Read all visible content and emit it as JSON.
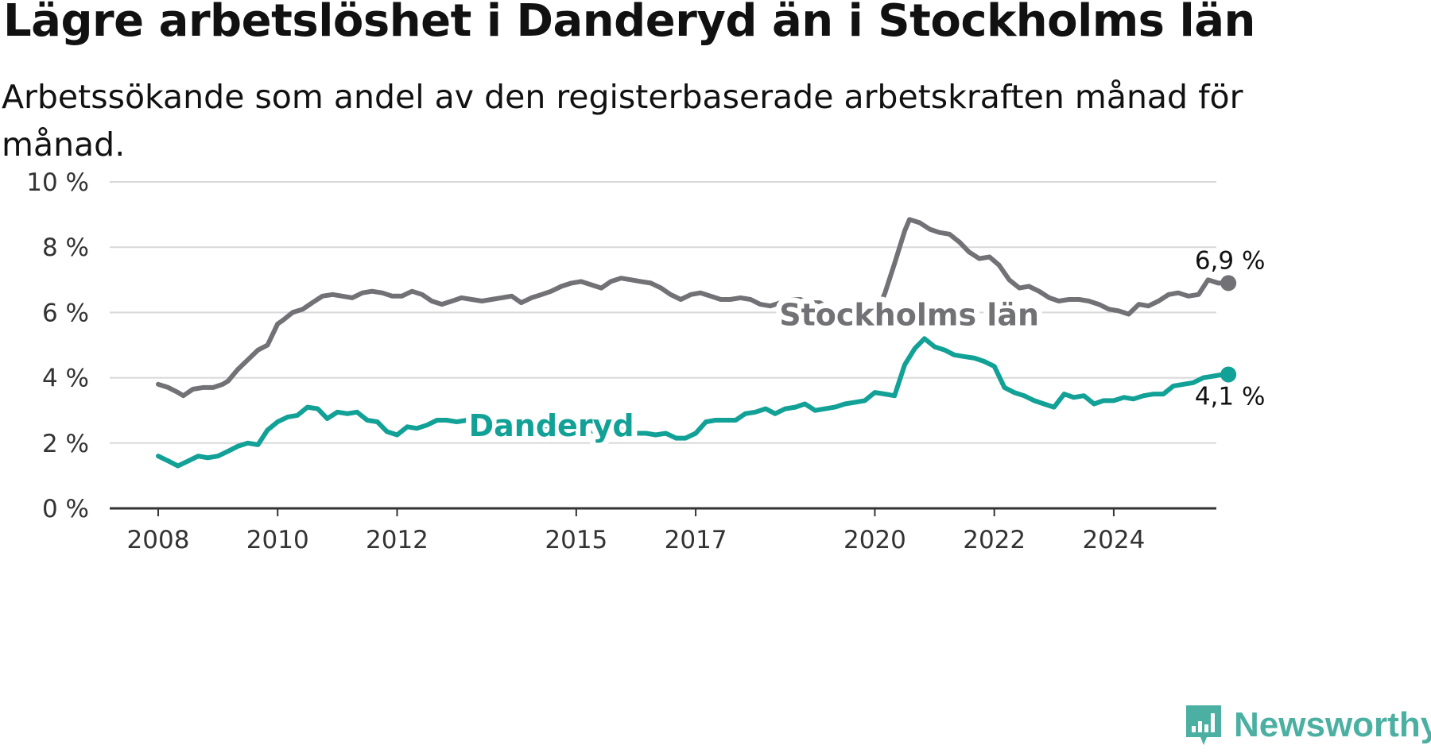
{
  "title": "Lägre arbetslöshet i Danderyd än i Stockholms län",
  "subtitle": "Arbetssökande som andel av den registerbaserade arbetskraften månad för månad.",
  "brand": {
    "name": "Newsworthy",
    "icon": "newsworthy-logo-icon"
  },
  "colors": {
    "stockholm": "#727175",
    "danderyd": "#12a196",
    "grid": "#d8d8d8",
    "axis": "#333333"
  },
  "chart_data": {
    "type": "line",
    "title": "Lägre arbetslöshet i Danderyd än i Stockholms län",
    "subtitle": "Arbetssökande som andel av den registerbaserade arbetskraften månad för månad.",
    "xlabel": "",
    "ylabel": "",
    "ylim": [
      0,
      10
    ],
    "xlim": [
      2008,
      2025.8
    ],
    "grid": true,
    "legend": "inline labels",
    "y_ticks": [
      {
        "value": 0,
        "label": "0 %"
      },
      {
        "value": 2,
        "label": "2 %"
      },
      {
        "value": 4,
        "label": "4 %"
      },
      {
        "value": 6,
        "label": "6 %"
      },
      {
        "value": 8,
        "label": "8 %"
      },
      {
        "value": 10,
        "label": "10 %"
      }
    ],
    "x_ticks": [
      {
        "value": 2008,
        "label": "2008"
      },
      {
        "value": 2010,
        "label": "2010"
      },
      {
        "value": 2012,
        "label": "2012"
      },
      {
        "value": 2015,
        "label": "2015"
      },
      {
        "value": 2017,
        "label": "2017"
      },
      {
        "value": 2020,
        "label": "2020"
      },
      {
        "value": 2022,
        "label": "2022"
      },
      {
        "value": 2024,
        "label": "2024"
      }
    ],
    "series": [
      {
        "name": "Stockholms län",
        "key": "stockholm",
        "end_label": "6,9 %",
        "points": [
          [
            2008.0,
            3.8
          ],
          [
            2008.17,
            3.7
          ],
          [
            2008.33,
            3.55
          ],
          [
            2008.42,
            3.45
          ],
          [
            2008.58,
            3.65
          ],
          [
            2008.75,
            3.7
          ],
          [
            2008.92,
            3.7
          ],
          [
            2009.08,
            3.8
          ],
          [
            2009.17,
            3.9
          ],
          [
            2009.33,
            4.25
          ],
          [
            2009.5,
            4.55
          ],
          [
            2009.67,
            4.85
          ],
          [
            2009.83,
            5.0
          ],
          [
            2010.0,
            5.65
          ],
          [
            2010.08,
            5.75
          ],
          [
            2010.25,
            6.0
          ],
          [
            2010.42,
            6.1
          ],
          [
            2010.58,
            6.3
          ],
          [
            2010.75,
            6.5
          ],
          [
            2010.92,
            6.55
          ],
          [
            2011.08,
            6.5
          ],
          [
            2011.25,
            6.45
          ],
          [
            2011.42,
            6.6
          ],
          [
            2011.58,
            6.65
          ],
          [
            2011.75,
            6.6
          ],
          [
            2011.92,
            6.5
          ],
          [
            2012.08,
            6.5
          ],
          [
            2012.25,
            6.65
          ],
          [
            2012.42,
            6.55
          ],
          [
            2012.58,
            6.35
          ],
          [
            2012.75,
            6.25
          ],
          [
            2012.92,
            6.35
          ],
          [
            2013.08,
            6.45
          ],
          [
            2013.25,
            6.4
          ],
          [
            2013.42,
            6.35
          ],
          [
            2013.58,
            6.4
          ],
          [
            2013.75,
            6.45
          ],
          [
            2013.92,
            6.5
          ],
          [
            2014.08,
            6.3
          ],
          [
            2014.25,
            6.45
          ],
          [
            2014.42,
            6.55
          ],
          [
            2014.58,
            6.65
          ],
          [
            2014.75,
            6.8
          ],
          [
            2014.92,
            6.9
          ],
          [
            2015.08,
            6.95
          ],
          [
            2015.25,
            6.85
          ],
          [
            2015.42,
            6.75
          ],
          [
            2015.58,
            6.95
          ],
          [
            2015.75,
            7.05
          ],
          [
            2015.92,
            7.0
          ],
          [
            2016.08,
            6.95
          ],
          [
            2016.25,
            6.9
          ],
          [
            2016.42,
            6.75
          ],
          [
            2016.58,
            6.55
          ],
          [
            2016.75,
            6.4
          ],
          [
            2016.92,
            6.55
          ],
          [
            2017.08,
            6.6
          ],
          [
            2017.25,
            6.5
          ],
          [
            2017.42,
            6.4
          ],
          [
            2017.58,
            6.4
          ],
          [
            2017.75,
            6.45
          ],
          [
            2017.92,
            6.4
          ],
          [
            2018.08,
            6.25
          ],
          [
            2018.25,
            6.2
          ],
          [
            2018.42,
            6.3
          ],
          [
            2018.58,
            6.4
          ],
          [
            2018.75,
            6.4
          ],
          [
            2018.92,
            6.3
          ],
          [
            2019.08,
            6.3
          ],
          [
            2019.25,
            6.1
          ],
          [
            2019.42,
            6.0
          ],
          [
            2019.58,
            6.05
          ],
          [
            2019.75,
            6.1
          ],
          [
            2019.92,
            6.1
          ],
          [
            2020.0,
            6.05
          ],
          [
            2020.08,
            6.1
          ],
          [
            2020.25,
            6.0
          ],
          [
            2020.42,
            6.05
          ],
          [
            2020.58,
            6.0
          ]
        ],
        "points_2": [
          [
            2020.0,
            6.2
          ],
          [
            2020.08,
            6.2
          ],
          [
            2020.17,
            6.6
          ],
          [
            2020.33,
            7.5
          ],
          [
            2020.5,
            8.5
          ],
          [
            2020.58,
            8.85
          ],
          [
            2020.75,
            8.75
          ],
          [
            2020.92,
            8.55
          ],
          [
            2021.08,
            8.45
          ],
          [
            2021.25,
            8.4
          ],
          [
            2021.42,
            8.15
          ],
          [
            2021.58,
            7.85
          ],
          [
            2021.75,
            7.65
          ],
          [
            2021.92,
            7.7
          ],
          [
            2022.08,
            7.45
          ],
          [
            2022.25,
            7.0
          ],
          [
            2022.42,
            6.75
          ],
          [
            2022.58,
            6.8
          ],
          [
            2022.75,
            6.65
          ],
          [
            2022.92,
            6.45
          ],
          [
            2023.08,
            6.35
          ],
          [
            2023.25,
            6.4
          ],
          [
            2023.42,
            6.4
          ],
          [
            2023.58,
            6.35
          ],
          [
            2023.75,
            6.25
          ],
          [
            2023.92,
            6.1
          ],
          [
            2024.08,
            6.05
          ],
          [
            2024.25,
            5.95
          ],
          [
            2024.42,
            6.25
          ],
          [
            2024.58,
            6.2
          ],
          [
            2024.75,
            6.35
          ],
          [
            2024.92,
            6.55
          ],
          [
            2025.08,
            6.6
          ],
          [
            2025.25,
            6.5
          ],
          [
            2025.42,
            6.55
          ],
          [
            2025.58,
            7.0
          ],
          [
            2025.75,
            6.9
          ],
          [
            2025.92,
            6.9
          ]
        ]
      },
      {
        "name": "Danderyd",
        "key": "danderyd",
        "end_label": "4,1 %",
        "points": [
          [
            2008.0,
            1.6
          ],
          [
            2008.17,
            1.45
          ],
          [
            2008.33,
            1.3
          ],
          [
            2008.5,
            1.45
          ],
          [
            2008.67,
            1.6
          ],
          [
            2008.83,
            1.55
          ],
          [
            2009.0,
            1.6
          ],
          [
            2009.17,
            1.75
          ],
          [
            2009.33,
            1.9
          ],
          [
            2009.5,
            2.0
          ],
          [
            2009.67,
            1.95
          ],
          [
            2009.83,
            2.4
          ],
          [
            2010.0,
            2.65
          ],
          [
            2010.17,
            2.8
          ],
          [
            2010.33,
            2.85
          ],
          [
            2010.5,
            3.1
          ],
          [
            2010.67,
            3.05
          ],
          [
            2010.83,
            2.75
          ],
          [
            2011.0,
            2.95
          ],
          [
            2011.17,
            2.9
          ],
          [
            2011.33,
            2.95
          ],
          [
            2011.5,
            2.7
          ],
          [
            2011.67,
            2.65
          ],
          [
            2011.83,
            2.35
          ],
          [
            2012.0,
            2.25
          ],
          [
            2012.17,
            2.5
          ],
          [
            2012.33,
            2.45
          ],
          [
            2012.5,
            2.55
          ],
          [
            2012.67,
            2.7
          ],
          [
            2012.83,
            2.7
          ],
          [
            2013.0,
            2.65
          ],
          [
            2013.17,
            2.7
          ],
          [
            2013.33,
            2.55
          ],
          [
            2013.5,
            2.5
          ],
          [
            2013.67,
            2.6
          ],
          [
            2013.83,
            2.55
          ],
          [
            2014.0,
            2.45
          ],
          [
            2014.17,
            2.5
          ],
          [
            2014.33,
            2.4
          ],
          [
            2014.5,
            2.45
          ],
          [
            2014.67,
            2.5
          ],
          [
            2014.83,
            2.55
          ],
          [
            2015.0,
            2.45
          ],
          [
            2015.17,
            2.4
          ],
          [
            2015.33,
            2.35
          ],
          [
            2015.5,
            2.3
          ],
          [
            2015.67,
            2.45
          ],
          [
            2015.83,
            2.35
          ],
          [
            2016.0,
            2.3
          ],
          [
            2016.17,
            2.3
          ],
          [
            2016.33,
            2.25
          ],
          [
            2016.5,
            2.3
          ],
          [
            2016.67,
            2.15
          ],
          [
            2016.83,
            2.15
          ],
          [
            2017.0,
            2.3
          ],
          [
            2017.17,
            2.65
          ],
          [
            2017.33,
            2.7
          ],
          [
            2017.5,
            2.7
          ],
          [
            2017.67,
            2.7
          ],
          [
            2017.83,
            2.9
          ],
          [
            2018.0,
            2.95
          ],
          [
            2018.17,
            3.05
          ],
          [
            2018.33,
            2.9
          ],
          [
            2018.5,
            3.05
          ],
          [
            2018.67,
            3.1
          ],
          [
            2018.83,
            3.2
          ],
          [
            2019.0,
            3.0
          ],
          [
            2019.17,
            3.05
          ],
          [
            2019.33,
            3.1
          ],
          [
            2019.5,
            3.2
          ],
          [
            2019.67,
            3.25
          ],
          [
            2019.83,
            3.3
          ],
          [
            2020.0,
            3.55
          ],
          [
            2020.17,
            3.5
          ],
          [
            2020.33,
            3.45
          ],
          [
            2020.5,
            4.4
          ],
          [
            2020.67,
            4.9
          ],
          [
            2020.83,
            5.2
          ],
          [
            2021.0,
            4.95
          ],
          [
            2021.17,
            4.85
          ],
          [
            2021.33,
            4.7
          ],
          [
            2021.5,
            4.65
          ],
          [
            2021.67,
            4.6
          ],
          [
            2021.83,
            4.5
          ],
          [
            2022.0,
            4.35
          ],
          [
            2022.17,
            3.7
          ],
          [
            2022.33,
            3.55
          ],
          [
            2022.5,
            3.45
          ],
          [
            2022.67,
            3.3
          ],
          [
            2022.83,
            3.2
          ],
          [
            2023.0,
            3.1
          ],
          [
            2023.17,
            3.5
          ],
          [
            2023.33,
            3.4
          ],
          [
            2023.5,
            3.45
          ],
          [
            2023.67,
            3.2
          ],
          [
            2023.83,
            3.3
          ],
          [
            2024.0,
            3.3
          ],
          [
            2024.17,
            3.4
          ],
          [
            2024.33,
            3.35
          ],
          [
            2024.5,
            3.45
          ],
          [
            2024.67,
            3.5
          ],
          [
            2024.83,
            3.5
          ],
          [
            2025.0,
            3.75
          ],
          [
            2025.17,
            3.8
          ],
          [
            2025.33,
            3.85
          ],
          [
            2025.5,
            4.0
          ],
          [
            2025.67,
            4.05
          ],
          [
            2025.83,
            4.1
          ],
          [
            2025.92,
            4.1
          ]
        ]
      }
    ],
    "annotations": [
      {
        "series": "stockholm",
        "text": "Stockholms län",
        "x": 2018.4,
        "y": 5.95
      },
      {
        "series": "danderyd",
        "text": "Danderyd",
        "x": 2013.2,
        "y": 2.55
      }
    ]
  }
}
